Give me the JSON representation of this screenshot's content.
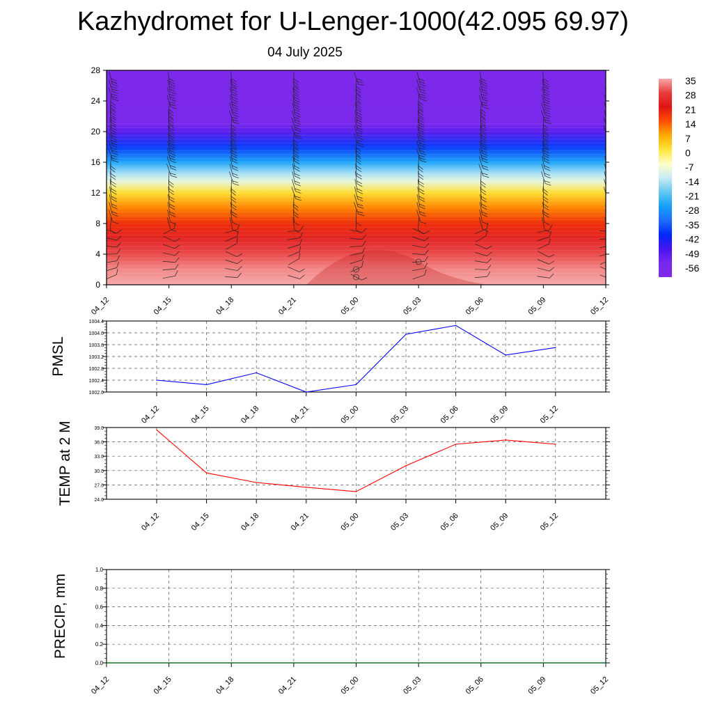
{
  "header": {
    "title": "Kazhydromet for U-Lenger-1000(42.095 69.97)",
    "date": "04 July 2025"
  },
  "chart_data": [
    {
      "type": "heatmap",
      "name": "vertical-cross-section",
      "x_labels": [
        "04_12",
        "04_15",
        "04_18",
        "04_21",
        "05_00",
        "05_03",
        "05_06",
        "05_09",
        "05_12"
      ],
      "y_ticks": [
        0,
        4,
        8,
        12,
        16,
        20,
        24,
        28
      ],
      "ylim": [
        0,
        28
      ],
      "temperature_profile": [
        {
          "level": 0,
          "temp": 35
        },
        {
          "level": 2,
          "temp": 33
        },
        {
          "level": 4,
          "temp": 29
        },
        {
          "level": 6,
          "temp": 24
        },
        {
          "level": 8,
          "temp": 18
        },
        {
          "level": 10,
          "temp": 10
        },
        {
          "level": 12,
          "temp": 1
        },
        {
          "level": 13.5,
          "temp": -10
        },
        {
          "level": 14.5,
          "temp": -16
        },
        {
          "level": 16,
          "temp": -27
        },
        {
          "level": 18,
          "temp": -40
        },
        {
          "level": 20,
          "temp": -52
        },
        {
          "level": 21,
          "temp": -57
        },
        {
          "level": 28,
          "temp": -60
        }
      ],
      "wind_barbs": true,
      "colorbar": {
        "labels": [
          "35",
          "28",
          "21",
          "14",
          "7",
          "0",
          "-7",
          "-14",
          "-21",
          "-28",
          "-35",
          "-42",
          "-49",
          "-56"
        ],
        "colors": [
          "#f4a6a6",
          "#e31a1c",
          "#ff4500",
          "#ff8c00",
          "#ffd700",
          "#fffacd",
          "#b0e0f0",
          "#00bfff",
          "#1e90ff",
          "#0000ff",
          "#8a2be2"
        ]
      }
    },
    {
      "type": "line",
      "name": "pmsl",
      "ylabel": "PMSL",
      "x_labels": [
        "04_12",
        "04_15",
        "04_18",
        "04_21",
        "05_00",
        "05_03",
        "05_06",
        "05_09",
        "05_12"
      ],
      "values": [
        1002.4,
        1002.25,
        1002.65,
        1002.0,
        1002.25,
        1003.95,
        1004.25,
        1003.25,
        1003.5
      ],
      "ylim": [
        1002.0,
        1004.4
      ],
      "y_ticks": [
        "1002.0",
        "1002.4",
        "1002.8",
        "1003.2",
        "1003.6",
        "1004.0",
        "1004.4"
      ],
      "color": "#0000ff"
    },
    {
      "type": "line",
      "name": "temp-2m",
      "ylabel": "TEMP at 2 M",
      "x_labels": [
        "04_12",
        "04_15",
        "04_18",
        "04_21",
        "05_00",
        "05_03",
        "05_06",
        "05_09",
        "05_12"
      ],
      "values": [
        38.5,
        29.5,
        27.5,
        26.5,
        25.6,
        31.0,
        35.5,
        36.4,
        35.5
      ],
      "ylim": [
        24.0,
        39.0
      ],
      "y_ticks": [
        "24.0",
        "27.0",
        "30.0",
        "33.0",
        "36.0",
        "39.0"
      ],
      "color": "#ff0000"
    },
    {
      "type": "line",
      "name": "precip",
      "ylabel": "PRECIP, mm",
      "x_labels": [
        "04_12",
        "04_15",
        "04_18",
        "04_21",
        "05_00",
        "05_03",
        "05_06",
        "05_09",
        "05_12"
      ],
      "values": [
        0,
        0,
        0,
        0,
        0,
        0,
        0,
        0,
        0
      ],
      "ylim": [
        0.0,
        1.0
      ],
      "y_ticks": [
        "0.0",
        "0.2",
        "0.4",
        "0.6",
        "0.8",
        "1.0"
      ],
      "color": "#006400"
    }
  ]
}
